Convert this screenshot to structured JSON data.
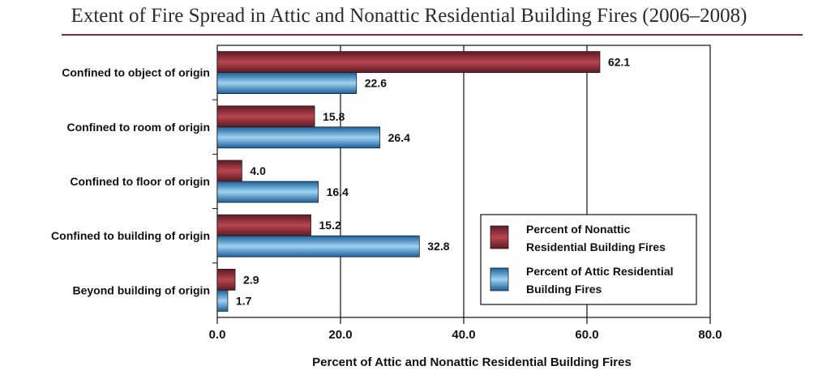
{
  "chart_data": {
    "type": "bar",
    "orientation": "horizontal",
    "title": "Extent of Fire Spread in Attic and Nonattic Residential Building Fires (2006–2008)",
    "xlabel": "Percent of Attic and Nonattic Residential Building Fires",
    "ylabel": "",
    "xlim": [
      0,
      80
    ],
    "xticks": [
      "0.0",
      "20.0",
      "40.0",
      "60.0",
      "80.0"
    ],
    "categories": [
      "Confined to object of origin",
      "Confined to room of origin",
      "Confined to floor of origin",
      "Confined to building of origin",
      "Beyond building of origin"
    ],
    "series": [
      {
        "name": "Percent of Nonattic Residential Building Fires",
        "legend_lines": [
          "Percent of Nonattic",
          "Residential Building Fires"
        ],
        "values": [
          62.1,
          15.8,
          4.0,
          15.2,
          2.9
        ],
        "labels": [
          "62.1",
          "15.8",
          "4.0",
          "15.2",
          "2.9"
        ],
        "color": "#8b2a35"
      },
      {
        "name": "Percent of Attic Residential Building Fires",
        "legend_lines": [
          "Percent of Attic Residential",
          "Building Fires"
        ],
        "values": [
          22.6,
          26.4,
          16.4,
          32.8,
          1.7
        ],
        "labels": [
          "22.6",
          "26.4",
          "16.4",
          "32.8",
          "1.7"
        ],
        "color": "#2a86c4"
      }
    ],
    "grid": "vertical",
    "legend_position": "bottom-right"
  }
}
